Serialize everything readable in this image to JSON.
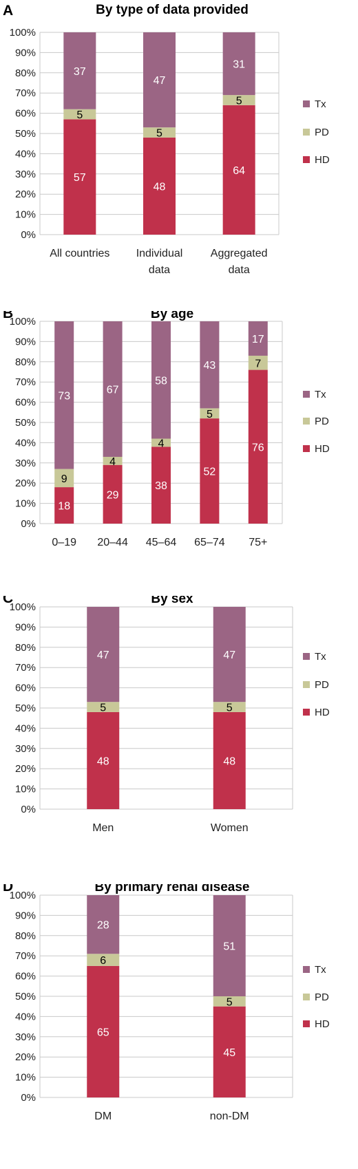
{
  "colors": {
    "Tx": "#9b6584",
    "PD": "#c8c898",
    "HD": "#c0314b"
  },
  "chart_data": [
    {
      "type": "bar",
      "stacked": true,
      "panel": "A",
      "title": "By type of data provided",
      "categories": [
        [
          "All countries"
        ],
        [
          "Individual",
          "data"
        ],
        [
          "Aggregated",
          "data"
        ]
      ],
      "series": [
        {
          "name": "HD",
          "values": [
            57,
            48,
            64
          ]
        },
        {
          "name": "PD",
          "values": [
            5,
            5,
            5
          ]
        },
        {
          "name": "Tx",
          "values": [
            37,
            47,
            31
          ]
        }
      ],
      "yticks": [
        "0%",
        "10%",
        "20%",
        "30%",
        "40%",
        "50%",
        "60%",
        "70%",
        "80%",
        "90%",
        "100%"
      ],
      "ylim": [
        0,
        100
      ],
      "legend": [
        "Tx",
        "PD",
        "HD"
      ],
      "legend_position": "right",
      "grid": true
    },
    {
      "type": "bar",
      "stacked": true,
      "panel": "B",
      "title": "By age",
      "categories": [
        [
          "0–19"
        ],
        [
          "20–44"
        ],
        [
          "45–64"
        ],
        [
          "65–74"
        ],
        [
          "75+"
        ]
      ],
      "series": [
        {
          "name": "HD",
          "values": [
            18,
            29,
            38,
            52,
            76
          ]
        },
        {
          "name": "PD",
          "values": [
            9,
            4,
            4,
            5,
            7
          ]
        },
        {
          "name": "Tx",
          "values": [
            73,
            67,
            58,
            43,
            17
          ]
        }
      ],
      "yticks": [
        "0%",
        "10%",
        "20%",
        "30%",
        "40%",
        "50%",
        "60%",
        "70%",
        "80%",
        "90%",
        "100%"
      ],
      "ylim": [
        0,
        100
      ],
      "legend": [
        "Tx",
        "PD",
        "HD"
      ],
      "legend_position": "right",
      "grid": true
    },
    {
      "type": "bar",
      "stacked": true,
      "panel": "C",
      "title": "By sex",
      "categories": [
        [
          "Men"
        ],
        [
          "Women"
        ]
      ],
      "series": [
        {
          "name": "HD",
          "values": [
            48,
            48
          ]
        },
        {
          "name": "PD",
          "values": [
            5,
            5
          ]
        },
        {
          "name": "Tx",
          "values": [
            47,
            47
          ]
        }
      ],
      "yticks": [
        "0%",
        "10%",
        "20%",
        "30%",
        "40%",
        "50%",
        "60%",
        "70%",
        "80%",
        "90%",
        "100%"
      ],
      "ylim": [
        0,
        100
      ],
      "legend": [
        "Tx",
        "PD",
        "HD"
      ],
      "legend_position": "right",
      "grid": true
    },
    {
      "type": "bar",
      "stacked": true,
      "panel": "D",
      "title": "By primary renal disease",
      "categories": [
        [
          "DM"
        ],
        [
          "non-DM"
        ]
      ],
      "series": [
        {
          "name": "HD",
          "values": [
            65,
            45
          ]
        },
        {
          "name": "PD",
          "values": [
            6,
            5
          ]
        },
        {
          "name": "Tx",
          "values": [
            28,
            51
          ]
        }
      ],
      "yticks": [
        "0%",
        "10%",
        "20%",
        "30%",
        "40%",
        "50%",
        "60%",
        "70%",
        "80%",
        "90%",
        "100%"
      ],
      "ylim": [
        0,
        100
      ],
      "legend": [
        "Tx",
        "PD",
        "HD"
      ],
      "legend_position": "right",
      "grid": true
    }
  ]
}
